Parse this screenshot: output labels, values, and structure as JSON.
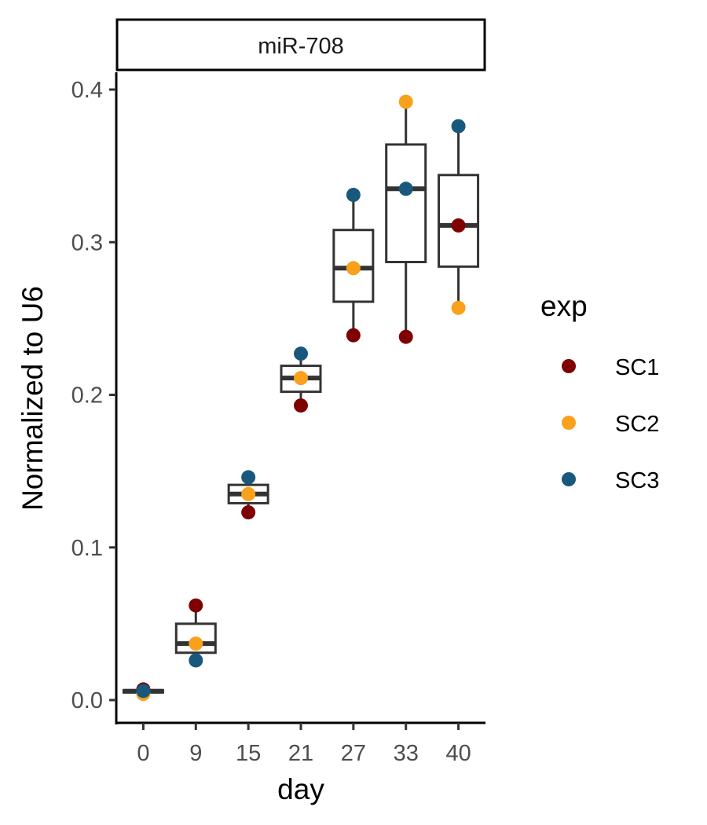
{
  "chart_data": {
    "type": "box",
    "facet_label": "miR-708",
    "xlabel": "day",
    "ylabel": "Normalized to U6",
    "categories": [
      "0",
      "9",
      "15",
      "21",
      "27",
      "33",
      "40"
    ],
    "ylim": [
      -0.012,
      0.41
    ],
    "yticks": [
      0.0,
      0.1,
      0.2,
      0.3,
      0.4
    ],
    "ytick_labels": [
      "0.0",
      "0.1",
      "0.2",
      "0.3",
      "0.4"
    ],
    "grid": false,
    "legend": {
      "title": "exp",
      "position": "right"
    },
    "boxes": [
      {
        "category": "0",
        "q1": 0.005,
        "median": 0.0058,
        "q3": 0.0065,
        "lower": 0.0045,
        "upper": 0.007
      },
      {
        "category": "9",
        "q1": 0.031,
        "median": 0.037,
        "q3": 0.05,
        "lower": 0.026,
        "upper": 0.062
      },
      {
        "category": "15",
        "q1": 0.129,
        "median": 0.135,
        "q3": 0.141,
        "lower": 0.123,
        "upper": 0.146
      },
      {
        "category": "21",
        "q1": 0.202,
        "median": 0.211,
        "q3": 0.219,
        "lower": 0.193,
        "upper": 0.227
      },
      {
        "category": "27",
        "q1": 0.261,
        "median": 0.283,
        "q3": 0.308,
        "lower": 0.239,
        "upper": 0.331
      },
      {
        "category": "33",
        "q1": 0.287,
        "median": 0.335,
        "q3": 0.364,
        "lower": 0.238,
        "upper": 0.392
      },
      {
        "category": "40",
        "q1": 0.284,
        "median": 0.311,
        "q3": 0.344,
        "lower": 0.257,
        "upper": 0.376
      }
    ],
    "series": [
      {
        "name": "SC1",
        "color": "#7f0000",
        "values": [
          0.007,
          0.062,
          0.123,
          0.193,
          0.239,
          0.238,
          0.311
        ]
      },
      {
        "name": "SC2",
        "color": "#f9a11b",
        "values": [
          0.004,
          0.037,
          0.135,
          0.211,
          0.283,
          0.392,
          0.257
        ]
      },
      {
        "name": "SC3",
        "color": "#19587d",
        "values": [
          0.006,
          0.026,
          0.146,
          0.227,
          0.331,
          0.335,
          0.376
        ]
      }
    ]
  }
}
